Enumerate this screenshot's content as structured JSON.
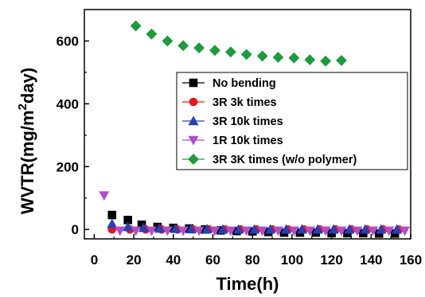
{
  "chart_data": {
    "type": "scatter",
    "xlabel": "Time(h)",
    "ylabel_main": "WVTR(mg/m",
    "ylabel_sup": "2",
    "ylabel_end": "day)",
    "xlim": [
      -5,
      160
    ],
    "ylim": [
      -30,
      700
    ],
    "x_ticks": [
      0,
      20,
      40,
      60,
      80,
      100,
      120,
      140,
      160
    ],
    "y_ticks": [
      0,
      200,
      400,
      600
    ],
    "legend_position": "center-right",
    "series": [
      {
        "name": "No bending",
        "marker": "square",
        "color": "#000000",
        "x": [
          9,
          17,
          24,
          32,
          40,
          48,
          56,
          64,
          72,
          80,
          88,
          96,
          104,
          112,
          120,
          128,
          136,
          144,
          152
        ],
        "y": [
          46,
          30,
          15,
          8,
          5,
          3,
          0,
          -3,
          -5,
          -6,
          -8,
          -10,
          -10,
          -10,
          -12,
          -12,
          -12,
          -13,
          -13
        ]
      },
      {
        "name": "3R 3k times",
        "marker": "circle",
        "color": "#e8141b",
        "x": [
          9,
          18,
          26,
          34,
          42,
          50,
          58,
          66,
          74,
          82,
          90,
          98,
          106,
          114,
          122,
          130,
          138,
          146,
          154
        ],
        "y": [
          0,
          0,
          0,
          0,
          0,
          0,
          0,
          0,
          0,
          0,
          0,
          0,
          0,
          0,
          0,
          0,
          0,
          0,
          0
        ]
      },
      {
        "name": "3R 10k times",
        "marker": "triangle-up",
        "color": "#2b3fb0",
        "x": [
          9,
          17,
          25,
          33,
          41,
          49,
          57,
          65,
          73,
          81,
          89,
          97,
          105,
          113,
          121,
          129,
          137,
          145,
          153
        ],
        "y": [
          18,
          8,
          5,
          3,
          2,
          1,
          1,
          0,
          0,
          0,
          0,
          0,
          0,
          0,
          0,
          0,
          0,
          0,
          0
        ]
      },
      {
        "name": "1R 10k times",
        "marker": "triangle-down",
        "color": "#b04ec8",
        "x": [
          5,
          13,
          21,
          29,
          37,
          45,
          53,
          61,
          69,
          77,
          85,
          93,
          101,
          109,
          117,
          125,
          133,
          141,
          149,
          157
        ],
        "y": [
          108,
          -4,
          -4,
          -4,
          -4,
          -4,
          -4,
          -4,
          -4,
          -4,
          -4,
          -4,
          -4,
          -4,
          -4,
          -4,
          -4,
          -4,
          -4,
          -4
        ]
      },
      {
        "name": "3R 3K times (w/o polymer)",
        "marker": "diamond",
        "color": "#1f9a3e",
        "x": [
          21,
          29,
          37,
          45,
          53,
          61,
          69,
          77,
          85,
          93,
          101,
          109,
          117,
          125
        ],
        "y": [
          648,
          622,
          600,
          585,
          578,
          570,
          565,
          557,
          552,
          548,
          546,
          540,
          536,
          538
        ]
      }
    ]
  }
}
